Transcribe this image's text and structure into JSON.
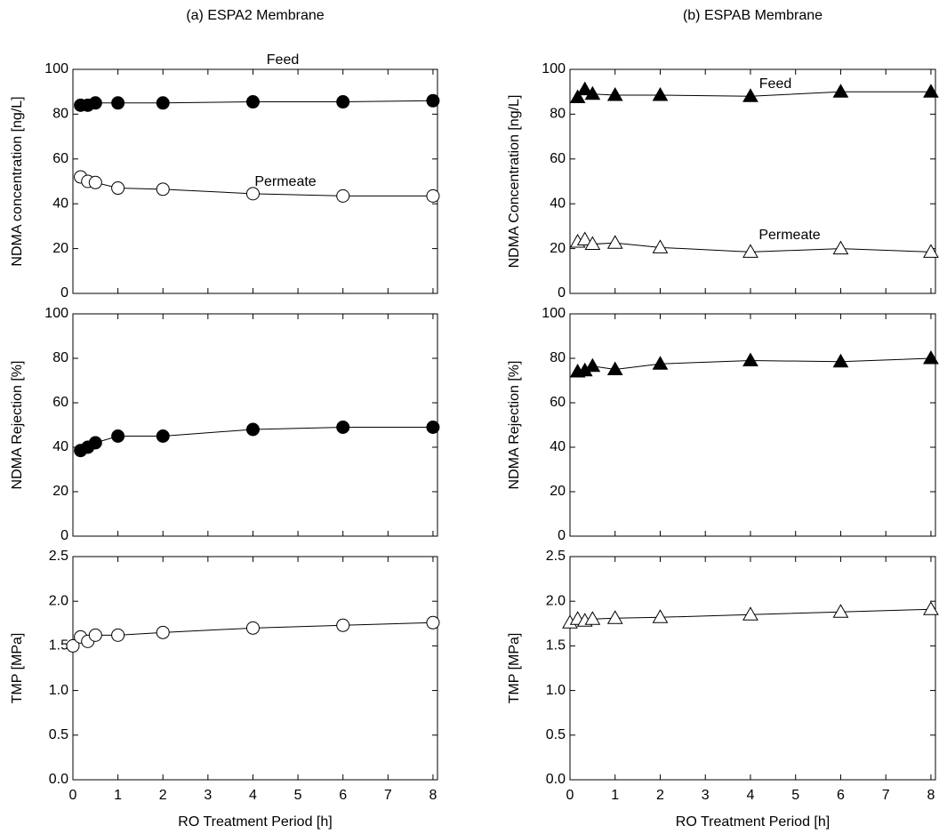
{
  "chart_data": [
    {
      "type": "line",
      "title": "(a) ESPA2 Membrane",
      "ylabel": "NDMA concentration [ng/L]",
      "x": [
        0.17,
        0.33,
        0.5,
        1,
        2,
        4,
        6,
        8
      ],
      "xlim": [
        0,
        8.1
      ],
      "xticks": [
        0,
        1,
        2,
        3,
        4,
        5,
        6,
        7,
        8
      ],
      "ylim": [
        0,
        100
      ],
      "yticks": [
        0,
        20,
        40,
        60,
        80,
        100
      ],
      "series": [
        {
          "name": "Feed",
          "marker": "circle",
          "color": "#000000",
          "values": [
            84,
            84,
            85,
            85,
            85,
            85.5,
            85.5,
            86
          ]
        },
        {
          "name": "Permeate",
          "marker": "circle",
          "color": "#ffffff",
          "values": [
            52,
            50,
            49.5,
            47,
            46.5,
            44.5,
            43.5,
            43.5
          ]
        }
      ]
    },
    {
      "type": "line",
      "ylabel": "NDMA Rejection [%]",
      "x": [
        0.17,
        0.33,
        0.5,
        1,
        2,
        4,
        6,
        8
      ],
      "xlim": [
        0,
        8.1
      ],
      "xticks": [
        0,
        1,
        2,
        3,
        4,
        5,
        6,
        7,
        8
      ],
      "ylim": [
        0,
        100
      ],
      "yticks": [
        0,
        20,
        40,
        60,
        80,
        100
      ],
      "series": [
        {
          "marker": "circle",
          "color": "#000000",
          "values": [
            38.5,
            40,
            42,
            45,
            45,
            48,
            49,
            49
          ]
        }
      ]
    },
    {
      "type": "line",
      "ylabel": "TMP [MPa]",
      "xlabel": "RO Treatment Period [h]",
      "x": [
        0,
        0.17,
        0.33,
        0.5,
        1,
        2,
        4,
        6,
        8
      ],
      "xlim": [
        0,
        8.1
      ],
      "xticks": [
        0,
        1,
        2,
        3,
        4,
        5,
        6,
        7,
        8
      ],
      "ylim": [
        0,
        2.5
      ],
      "yticks": [
        {
          "value": 0,
          "label": "0.0"
        },
        0.5,
        {
          "value": 1,
          "label": "1.0"
        },
        1.5,
        {
          "value": 2,
          "label": "2.0"
        },
        2.5
      ],
      "series": [
        {
          "marker": "circle",
          "color": "#ffffff",
          "values": [
            1.5,
            1.6,
            1.55,
            1.62,
            1.62,
            1.65,
            1.7,
            1.73,
            1.76
          ]
        }
      ]
    },
    {
      "type": "line",
      "title": "(b) ESPAB Membrane",
      "ylabel": "NDMA Concentration [ng/L]",
      "x": [
        0.17,
        0.33,
        0.5,
        1,
        2,
        4,
        6,
        8
      ],
      "xlim": [
        0,
        8.1
      ],
      "xticks": [
        0,
        1,
        2,
        3,
        4,
        5,
        6,
        7,
        8
      ],
      "ylim": [
        0,
        100
      ],
      "yticks": [
        0,
        20,
        40,
        60,
        80,
        100
      ],
      "series": [
        {
          "name": "Feed",
          "marker": "triangle",
          "color": "#000000",
          "values": [
            87.5,
            91,
            89,
            88.5,
            88.5,
            88,
            90,
            90
          ]
        },
        {
          "name": "Permeate",
          "marker": "triangle",
          "color": "#ffffff",
          "values": [
            23,
            24,
            22,
            22.5,
            20.5,
            18.5,
            20,
            18.5
          ]
        }
      ]
    },
    {
      "type": "line",
      "ylabel": "NDMA Rejection [%]",
      "x": [
        0.17,
        0.33,
        0.5,
        1,
        2,
        4,
        6,
        8
      ],
      "xlim": [
        0,
        8.1
      ],
      "xticks": [
        0,
        1,
        2,
        3,
        4,
        5,
        6,
        7,
        8
      ],
      "ylim": [
        0,
        100
      ],
      "yticks": [
        0,
        20,
        40,
        60,
        80,
        100
      ],
      "series": [
        {
          "marker": "triangle",
          "color": "#000000",
          "values": [
            74,
            74.5,
            76.5,
            75,
            77.5,
            79,
            78.5,
            80
          ]
        }
      ]
    },
    {
      "type": "line",
      "ylabel": "TMP [MPa]",
      "xlabel": "RO Treatment Period [h]",
      "x": [
        0,
        0.17,
        0.33,
        0.5,
        1,
        2,
        4,
        6,
        8
      ],
      "xlim": [
        0,
        8.1
      ],
      "xticks": [
        0,
        1,
        2,
        3,
        4,
        5,
        6,
        7,
        8
      ],
      "ylim": [
        0,
        2.5
      ],
      "yticks": [
        {
          "value": 0,
          "label": "0.0"
        },
        0.5,
        {
          "value": 1,
          "label": "1.0"
        },
        1.5,
        {
          "value": 2,
          "label": "2.0"
        },
        2.5
      ],
      "series": [
        {
          "marker": "triangle",
          "color": "#ffffff",
          "values": [
            1.76,
            1.8,
            1.78,
            1.8,
            1.81,
            1.82,
            1.85,
            1.88,
            1.91
          ]
        }
      ]
    }
  ]
}
